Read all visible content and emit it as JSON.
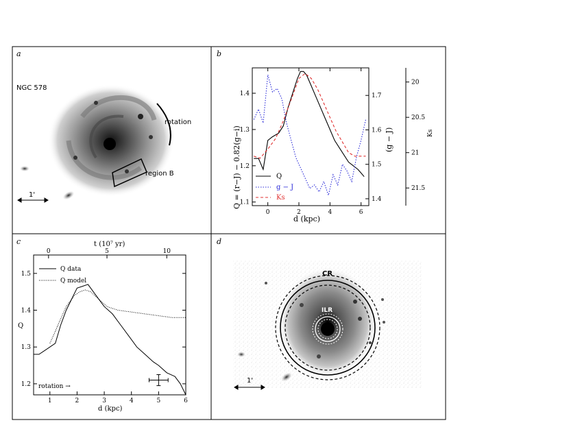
{
  "panels": {
    "a": {
      "letter": "a",
      "galaxy_label": "NGC 578",
      "rotation_label": "rotation",
      "region_label": "region B",
      "scale_label": "1'"
    },
    "b": {
      "letter": "b",
      "legend": [
        "Q",
        "g − J",
        "Ks"
      ],
      "xlabel": "d (kpc)",
      "ylabel_left": "Q = (r−J) − 0.82(g−i)",
      "ylabel_mid": "(g − J)",
      "ylabel_right": "Ks"
    },
    "c": {
      "letter": "c",
      "legend": [
        "Q data",
        "Q model"
      ],
      "xlabel": "d (kpc)",
      "top_label": "t (10⁷ yr)",
      "ylabel": "Q",
      "rotation_label": "rotation →"
    },
    "d": {
      "letter": "d",
      "cr_label": "CR",
      "ilr_label": "ILR",
      "scale_label": "1'"
    }
  },
  "chart_data": [
    {
      "type": "line",
      "panel": "b",
      "xlabel": "d (kpc)",
      "ylabel": "Q = (r−J) − 0.82(g−i)",
      "xlim": [
        -1,
        6.5
      ],
      "ylim_left": [
        1.09,
        1.47
      ],
      "ylim_mid": [
        1.38,
        1.78
      ],
      "ylim_right": [
        21.75,
        19.8
      ],
      "x_ticks": [
        0,
        2,
        4,
        6
      ],
      "y_ticks_left": [
        1.1,
        1.2,
        1.3,
        1.4
      ],
      "y_ticks_mid": [
        1.4,
        1.5,
        1.6,
        1.7
      ],
      "y_ticks_right": [
        20,
        20.5,
        21,
        21.5
      ],
      "series": [
        {
          "name": "Q",
          "color": "#000000",
          "axis": "left",
          "x": [
            -0.9,
            -0.6,
            -0.3,
            0.0,
            0.3,
            0.7,
            1.0,
            1.3,
            1.6,
            1.9,
            2.1,
            2.3,
            2.5,
            2.8,
            3.1,
            3.4,
            3.7,
            4.0,
            4.3,
            4.6,
            4.9,
            5.2,
            5.5,
            5.8,
            6.0,
            6.2
          ],
          "y": [
            1.22,
            1.22,
            1.19,
            1.27,
            1.28,
            1.29,
            1.31,
            1.36,
            1.4,
            1.44,
            1.46,
            1.46,
            1.45,
            1.42,
            1.39,
            1.36,
            1.33,
            1.3,
            1.27,
            1.25,
            1.23,
            1.21,
            1.2,
            1.19,
            1.18,
            1.17
          ]
        },
        {
          "name": "g − J",
          "color": "#2a2ad8",
          "axis": "mid",
          "x": [
            -0.9,
            -0.6,
            -0.3,
            0.0,
            0.3,
            0.6,
            0.9,
            1.2,
            1.5,
            1.8,
            2.1,
            2.4,
            2.7,
            3.0,
            3.3,
            3.6,
            3.9,
            4.2,
            4.5,
            4.8,
            5.1,
            5.4,
            5.7,
            6.0,
            6.3
          ],
          "y": [
            1.63,
            1.66,
            1.62,
            1.76,
            1.71,
            1.72,
            1.69,
            1.62,
            1.57,
            1.52,
            1.49,
            1.46,
            1.43,
            1.44,
            1.42,
            1.45,
            1.41,
            1.47,
            1.44,
            1.5,
            1.48,
            1.45,
            1.52,
            1.57,
            1.63
          ]
        },
        {
          "name": "Ks",
          "color": "#e03030",
          "axis": "right",
          "x": [
            -0.9,
            -0.5,
            0.0,
            0.5,
            1.0,
            1.5,
            2.0,
            2.4,
            2.8,
            3.2,
            3.6,
            4.0,
            4.4,
            4.8,
            5.2,
            5.6,
            6.0,
            6.3
          ],
          "y": [
            21.05,
            21.08,
            20.95,
            20.8,
            20.55,
            20.25,
            19.95,
            19.88,
            19.95,
            20.1,
            20.3,
            20.5,
            20.7,
            20.85,
            21.0,
            21.05,
            21.05,
            21.05
          ]
        }
      ]
    },
    {
      "type": "line",
      "panel": "c",
      "xlabel": "d (kpc)",
      "ylabel": "Q",
      "top_label": "t (10⁷ yr)",
      "xlim": [
        0.4,
        6
      ],
      "ylim": [
        1.17,
        1.55
      ],
      "x_ticks": [
        1,
        2,
        3,
        4,
        5,
        6
      ],
      "y_ticks": [
        1.2,
        1.3,
        1.4,
        1.5
      ],
      "top_ticks": [
        0,
        5,
        10
      ],
      "top_tick_positions_kpc": [
        0.95,
        3.1,
        5.3
      ],
      "series": [
        {
          "name": "Q data",
          "style": "solid",
          "x": [
            0.4,
            0.6,
            0.8,
            1.0,
            1.2,
            1.4,
            1.6,
            1.8,
            2.0,
            2.2,
            2.4,
            2.6,
            2.8,
            3.0,
            3.3,
            3.6,
            3.9,
            4.2,
            4.5,
            4.8,
            5.0,
            5.3,
            5.6,
            5.8,
            6.0
          ],
          "y": [
            1.28,
            1.28,
            1.29,
            1.3,
            1.31,
            1.36,
            1.4,
            1.43,
            1.46,
            1.465,
            1.47,
            1.45,
            1.43,
            1.41,
            1.39,
            1.36,
            1.33,
            1.3,
            1.28,
            1.26,
            1.25,
            1.23,
            1.22,
            1.2,
            1.17
          ]
        },
        {
          "name": "Q model",
          "style": "dotted",
          "x": [
            1.0,
            1.3,
            1.6,
            1.9,
            2.1,
            2.3,
            2.5,
            2.8,
            3.1,
            3.5,
            4.0,
            4.5,
            5.0,
            5.5,
            6.0
          ],
          "y": [
            1.31,
            1.36,
            1.41,
            1.44,
            1.45,
            1.455,
            1.45,
            1.43,
            1.41,
            1.4,
            1.395,
            1.39,
            1.385,
            1.38,
            1.38
          ]
        }
      ],
      "error_bar": {
        "x": 5.0,
        "y": 1.21,
        "xerr": 0.35,
        "yerr": 0.015
      }
    }
  ]
}
